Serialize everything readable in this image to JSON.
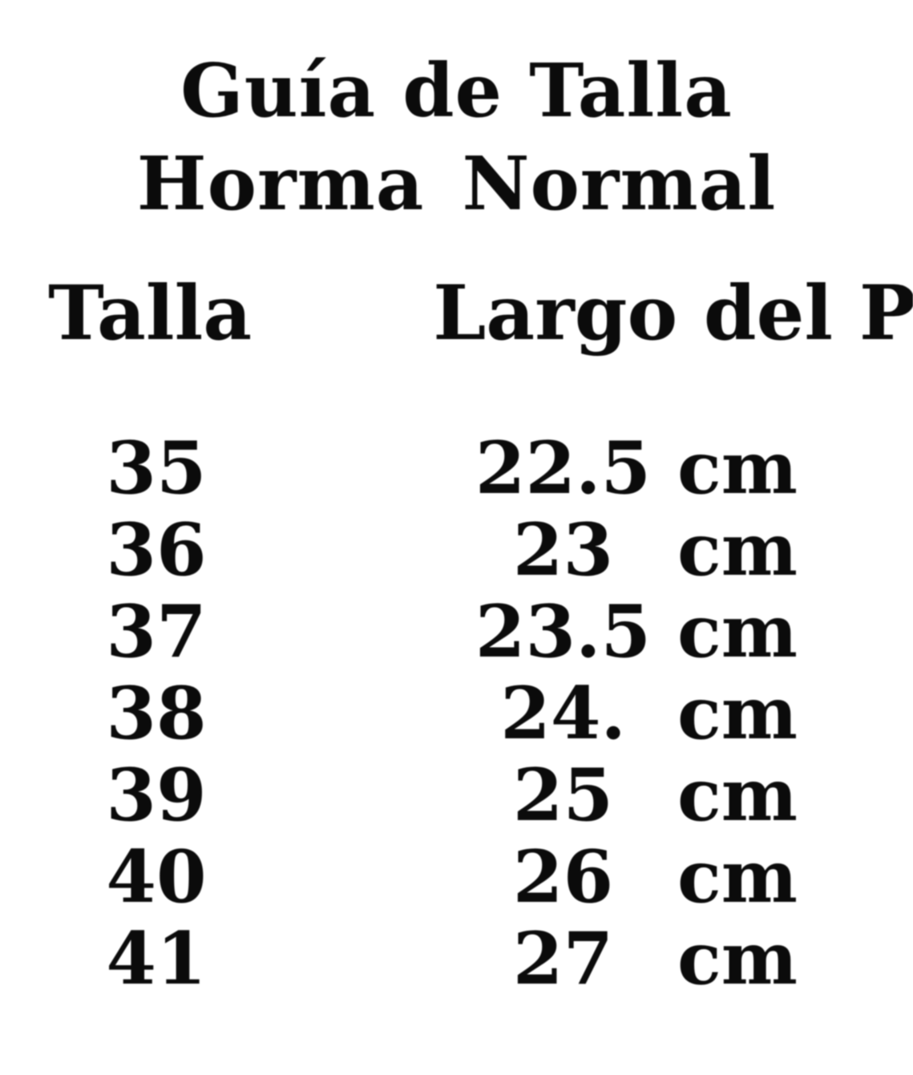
{
  "colors": {
    "background": "#ffffff",
    "text": "#0b0b0b"
  },
  "title": {
    "line1": "Guía de Talla",
    "line2": "Horma Normal"
  },
  "table": {
    "headers": {
      "size": "Talla",
      "length": "Largo del Pie"
    },
    "rows": [
      {
        "talla": "35",
        "largo": "22.5",
        "unit": "cm"
      },
      {
        "talla": "36",
        "largo": "23",
        "unit": "cm"
      },
      {
        "talla": "37",
        "largo": "23.5",
        "unit": "cm"
      },
      {
        "talla": "38",
        "largo": "24.",
        "unit": "cm"
      },
      {
        "talla": "39",
        "largo": "25",
        "unit": "cm"
      },
      {
        "talla": "40",
        "largo": "26",
        "unit": "cm"
      },
      {
        "talla": "41",
        "largo": "27",
        "unit": "cm"
      }
    ]
  },
  "chart_data": {
    "type": "table",
    "title": "Guía de Talla Horma Normal",
    "columns": [
      "Talla",
      "Largo del Pie"
    ],
    "rows": [
      [
        "35",
        "22.5 cm"
      ],
      [
        "36",
        "23 cm"
      ],
      [
        "37",
        "23.5 cm"
      ],
      [
        "38",
        "24. cm"
      ],
      [
        "39",
        "25 cm"
      ],
      [
        "40",
        "26 cm"
      ],
      [
        "41",
        "27 cm"
      ]
    ]
  }
}
